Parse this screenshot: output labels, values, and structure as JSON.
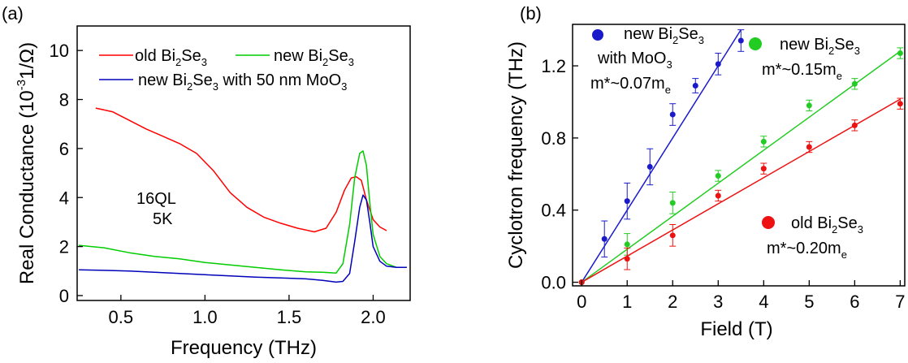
{
  "chart_data": [
    {
      "type": "line",
      "panel_label": "(a)",
      "xlabel": "Frequency (THz)",
      "ylabel": "Real Conductance (10",
      "ylabel_sup": "-3",
      "ylabel_tail": "1/Ω)",
      "xlim": [
        0.24,
        2.22
      ],
      "ylim": [
        -0.2,
        11
      ],
      "xticks": [
        "0.5",
        "1.0",
        "1.5",
        "2.0"
      ],
      "xtick_values": [
        0.5,
        1.0,
        1.5,
        2.0
      ],
      "yticks": [
        "0",
        "2",
        "4",
        "6",
        "8",
        "10"
      ],
      "ytick_values": [
        0,
        2,
        4,
        6,
        8,
        10
      ],
      "annotations": [
        "16QL",
        "5K"
      ],
      "legend": [
        {
          "base": "old Bi",
          "sub1": "2",
          "mid": "Se",
          "sub2": "3",
          "tail": "",
          "color": "#ff0000"
        },
        {
          "base": "new Bi",
          "sub1": "2",
          "mid": "Se",
          "sub2": "3",
          "tail": "",
          "color": "#00cc00"
        },
        {
          "base": "new Bi",
          "sub1": "2",
          "mid": "Se",
          "sub2": "3",
          "tail": " with 50 nm MoO",
          "sub3": "3",
          "color": "#0000bb"
        }
      ],
      "series": [
        {
          "name": "old Bi2Se3",
          "color": "#ff0000",
          "x": [
            0.35,
            0.45,
            0.55,
            0.65,
            0.75,
            0.85,
            0.95,
            1.05,
            1.15,
            1.25,
            1.35,
            1.45,
            1.55,
            1.65,
            1.72,
            1.78,
            1.83,
            1.87,
            1.9,
            1.93,
            1.96,
            2.0,
            2.04,
            2.08
          ],
          "y": [
            7.65,
            7.5,
            7.15,
            6.8,
            6.5,
            6.2,
            5.8,
            5.1,
            4.2,
            3.6,
            3.2,
            2.95,
            2.75,
            2.6,
            2.75,
            3.4,
            4.3,
            4.8,
            4.85,
            4.7,
            3.9,
            3.1,
            2.8,
            2.65
          ]
        },
        {
          "name": "new Bi2Se3",
          "color": "#00cc00",
          "x": [
            0.25,
            0.4,
            0.55,
            0.7,
            0.85,
            1.0,
            1.15,
            1.3,
            1.45,
            1.6,
            1.7,
            1.78,
            1.82,
            1.86,
            1.89,
            1.92,
            1.94,
            1.96,
            1.98,
            2.0,
            2.04,
            2.08,
            2.14,
            2.2
          ],
          "y": [
            2.05,
            1.95,
            1.75,
            1.6,
            1.5,
            1.35,
            1.25,
            1.15,
            1.05,
            0.97,
            0.95,
            0.92,
            1.3,
            2.9,
            4.8,
            5.8,
            5.9,
            5.3,
            3.8,
            2.5,
            1.6,
            1.3,
            1.15,
            1.15
          ]
        },
        {
          "name": "new Bi2Se3 with 50 nm MoO3",
          "color": "#0000bb",
          "x": [
            0.25,
            0.4,
            0.55,
            0.7,
            0.85,
            1.0,
            1.15,
            1.3,
            1.45,
            1.6,
            1.7,
            1.78,
            1.82,
            1.86,
            1.89,
            1.92,
            1.94,
            1.96,
            1.98,
            2.0,
            2.04,
            2.08,
            2.14,
            2.2
          ],
          "y": [
            1.05,
            1.03,
            1.0,
            0.95,
            0.9,
            0.85,
            0.8,
            0.75,
            0.72,
            0.68,
            0.62,
            0.55,
            0.58,
            0.9,
            2.2,
            3.6,
            4.1,
            3.9,
            3.0,
            2.0,
            1.4,
            1.2,
            1.15,
            1.15
          ]
        }
      ]
    },
    {
      "type": "scatter",
      "panel_label": "(b)",
      "xlabel": "Field (T)",
      "ylabel": "Cyclotron frequency (THz)",
      "xlim": [
        -0.2,
        7.1
      ],
      "ylim": [
        -0.02,
        1.43
      ],
      "xticks": [
        "0",
        "1",
        "2",
        "3",
        "4",
        "5",
        "6",
        "7"
      ],
      "xtick_values": [
        0,
        1,
        2,
        3,
        4,
        5,
        6,
        7
      ],
      "yticks": [
        "0.0",
        "0.4",
        "0.8",
        "1.2"
      ],
      "ytick_values": [
        0.0,
        0.4,
        0.8,
        1.2
      ],
      "legend": [
        {
          "line1_pre": "new Bi",
          "line1_sub1": "2",
          "line1_mid": "Se",
          "line1_sub2": "3",
          "line2_pre": "with MoO",
          "line2_sub": "3",
          "line3_pre": "m*~0.07m",
          "line3_sub": "e",
          "color": "#1a1acc"
        },
        {
          "line1_pre": "new Bi",
          "line1_sub1": "2",
          "line1_mid": "Se",
          "line1_sub2": "3",
          "line3_pre": "m*~0.15m",
          "line3_sub": "e",
          "color": "#22cc22"
        },
        {
          "line1_pre": "old Bi",
          "line1_sub1": "2",
          "line1_mid": "Se",
          "line1_sub2": "3",
          "line3_pre": "m*~0.20m",
          "line3_sub": "e",
          "color": "#ee1111"
        }
      ],
      "series": [
        {
          "name": "new Bi2Se3 with MoO3",
          "color": "#1a1acc",
          "fit_slope": 0.4,
          "x": [
            0,
            0.5,
            1,
            1.5,
            2,
            2.5,
            3,
            3.5
          ],
          "y": [
            0,
            0.24,
            0.45,
            0.64,
            0.93,
            1.09,
            1.21,
            1.34
          ],
          "err": [
            0,
            0.1,
            0.1,
            0.1,
            0.06,
            0.04,
            0.06,
            0.06
          ]
        },
        {
          "name": "new Bi2Se3",
          "color": "#22cc22",
          "fit_slope": 0.183,
          "x": [
            0,
            1,
            2,
            3,
            4,
            5,
            6,
            7
          ],
          "y": [
            0,
            0.21,
            0.44,
            0.59,
            0.78,
            0.98,
            1.1,
            1.27
          ],
          "err": [
            0,
            0.06,
            0.06,
            0.03,
            0.03,
            0.03,
            0.03,
            0.03
          ]
        },
        {
          "name": "old Bi2Se3",
          "color": "#ee1111",
          "fit_slope": 0.145,
          "x": [
            0,
            1,
            2,
            3,
            4,
            5,
            6,
            7
          ],
          "y": [
            0,
            0.13,
            0.26,
            0.48,
            0.63,
            0.75,
            0.87,
            0.99
          ],
          "err": [
            0,
            0.06,
            0.06,
            0.03,
            0.03,
            0.03,
            0.03,
            0.03
          ]
        }
      ]
    }
  ]
}
